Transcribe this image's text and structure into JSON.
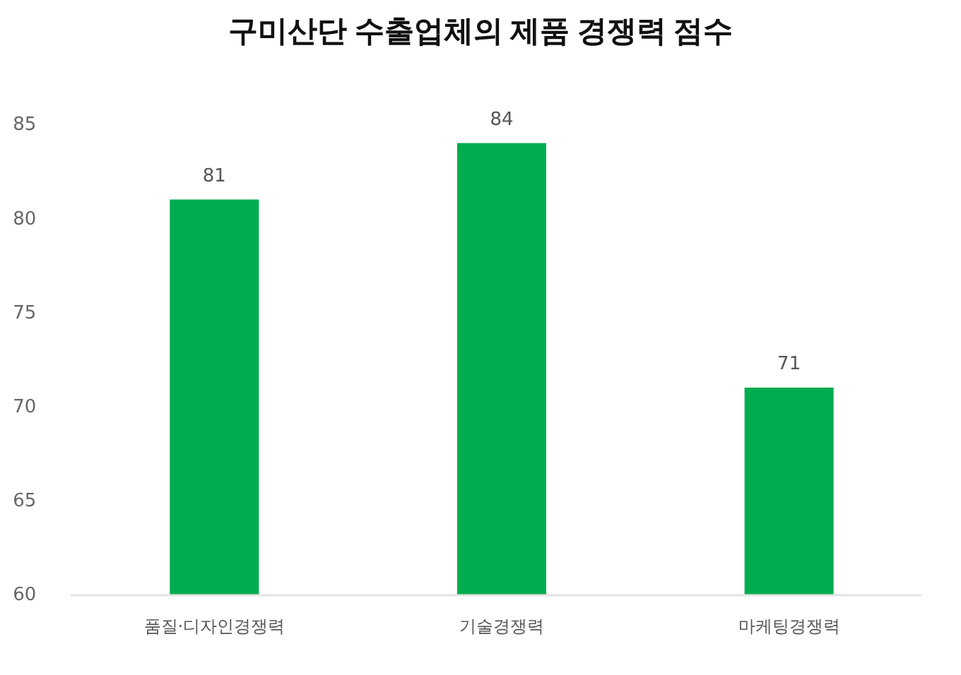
{
  "chart_data": {
    "type": "bar",
    "title": "구미산단 수출업체의 제품 경쟁력 점수",
    "categories": [
      "품질·디자인경쟁력",
      "기술경쟁력",
      "마케팅경쟁력"
    ],
    "values": [
      81,
      84,
      71
    ],
    "color": "#00ac4f",
    "ylim": [
      60,
      85
    ],
    "yticks": [
      60,
      65,
      70,
      75,
      80,
      85
    ],
    "grid": false,
    "data_labels": true
  }
}
